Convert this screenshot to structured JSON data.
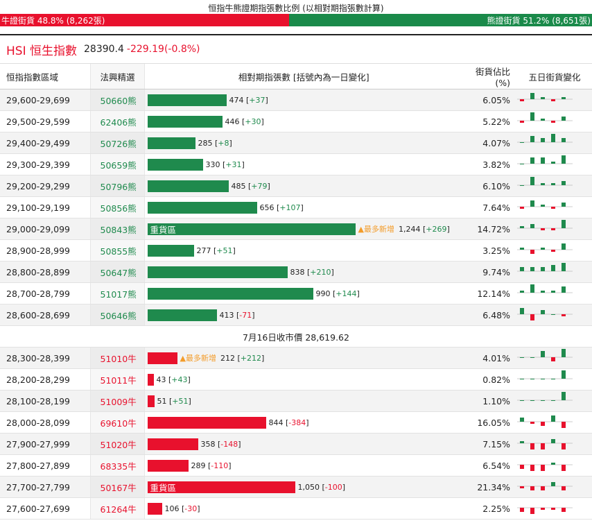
{
  "top": {
    "title": "恒指牛熊證期指張數比例 (以相對期指張數計算)",
    "bull_label": "牛證街貨 48.8% (8,262張)",
    "bear_label": "熊證街貨 51.2% (8,651張)",
    "bull_share": 48.8,
    "bear_share": 51.2,
    "bull_color": "#e8112d",
    "bear_color": "#1a8a4a"
  },
  "hsi": {
    "name": "HSI 恒生指數",
    "price": "28390.4",
    "change": "-229.19(-0.8%)"
  },
  "table": {
    "headers": {
      "range": "恒指指數區域",
      "code": "法興精選",
      "bar": "相對期指張數 [括號內為一日變化]",
      "pct": "街貨佔比(%)",
      "spark": "五日街貨變化"
    },
    "closing_label": "7月16日收市價 28,619.62",
    "heavy_label": "重貨區",
    "new_label": "▲最多新增",
    "bear_rows": [
      {
        "range": "29,600-29,699",
        "code": "50660熊",
        "contracts": 474,
        "count": "474",
        "change": "+37",
        "pct": "6.05%",
        "spark": [
          -1,
          3,
          1,
          -1,
          1
        ]
      },
      {
        "range": "29,500-29,599",
        "code": "62406熊",
        "contracts": 446,
        "count": "446",
        "change": "+30",
        "pct": "5.22%",
        "spark": [
          -1,
          4,
          1,
          -1,
          2
        ]
      },
      {
        "range": "29,400-29,499",
        "code": "50726熊",
        "contracts": 285,
        "count": "285",
        "change": "+8",
        "pct": "4.07%",
        "spark": [
          0,
          3,
          2,
          4,
          2
        ]
      },
      {
        "range": "29,300-29,399",
        "code": "50659熊",
        "contracts": 330,
        "count": "330",
        "change": "+31",
        "pct": "3.82%",
        "spark": [
          0,
          3,
          3,
          1,
          4
        ]
      },
      {
        "range": "29,200-29,299",
        "code": "50796熊",
        "contracts": 485,
        "count": "485",
        "change": "+79",
        "pct": "6.10%",
        "spark": [
          0,
          4,
          1,
          1,
          2
        ]
      },
      {
        "range": "29,100-29,199",
        "code": "50856熊",
        "contracts": 656,
        "count": "656",
        "change": "+107",
        "pct": "7.64%",
        "spark": [
          -1,
          3,
          1,
          -1,
          2
        ]
      },
      {
        "range": "29,000-29,099",
        "code": "50843熊",
        "contracts": 1244,
        "count": "1,244",
        "change": "+269",
        "pct": "14.72%",
        "spark": [
          1,
          2,
          -1,
          -1,
          4
        ],
        "heavy": true,
        "new": true
      },
      {
        "range": "28,900-28,999",
        "code": "50855熊",
        "contracts": 277,
        "count": "277",
        "change": "+51",
        "pct": "3.25%",
        "spark": [
          1,
          -2,
          1,
          -1,
          3
        ]
      },
      {
        "range": "28,800-28,899",
        "code": "50647熊",
        "contracts": 838,
        "count": "838",
        "change": "+210",
        "pct": "9.74%",
        "spark": [
          2,
          2,
          2,
          3,
          4
        ]
      },
      {
        "range": "28,700-28,799",
        "code": "51017熊",
        "contracts": 990,
        "count": "990",
        "change": "+144",
        "pct": "12.14%",
        "spark": [
          1,
          4,
          1,
          1,
          3
        ]
      },
      {
        "range": "28,600-28,699",
        "code": "50646熊",
        "contracts": 413,
        "count": "413",
        "change": "-71",
        "pct": "6.48%",
        "spark": [
          3,
          -3,
          2,
          0,
          -1
        ]
      }
    ],
    "bull_rows": [
      {
        "range": "28,300-28,399",
        "code": "51010牛",
        "contracts": 212,
        "count": "212",
        "change": "+212",
        "pct": "4.01%",
        "spark": [
          0,
          0,
          3,
          -2,
          4
        ],
        "new": true
      },
      {
        "range": "28,200-28,299",
        "code": "51011牛",
        "contracts": 43,
        "count": "43",
        "change": "+43",
        "pct": "0.82%",
        "spark": [
          0,
          0,
          0,
          0,
          4
        ]
      },
      {
        "range": "28,100-28,199",
        "code": "51009牛",
        "contracts": 51,
        "count": "51",
        "change": "+51",
        "pct": "1.10%",
        "spark": [
          0,
          0,
          0,
          0,
          4
        ]
      },
      {
        "range": "28,000-28,099",
        "code": "69610牛",
        "contracts": 844,
        "count": "844",
        "change": "-384",
        "pct": "16.05%",
        "spark": [
          2,
          -1,
          -2,
          3,
          -3
        ]
      },
      {
        "range": "27,900-27,999",
        "code": "51020牛",
        "contracts": 358,
        "count": "358",
        "change": "-148",
        "pct": "7.15%",
        "spark": [
          1,
          -3,
          -3,
          2,
          -3
        ]
      },
      {
        "range": "27,800-27,899",
        "code": "68335牛",
        "contracts": 289,
        "count": "289",
        "change": "-110",
        "pct": "6.54%",
        "spark": [
          -2,
          -3,
          -3,
          1,
          -3
        ]
      },
      {
        "range": "27,700-27,799",
        "code": "50167牛",
        "contracts": 1050,
        "count": "1,050",
        "change": "-100",
        "pct": "21.34%",
        "spark": [
          -1,
          -2,
          -2,
          2,
          -2
        ],
        "heavy": true
      },
      {
        "range": "27,600-27,699",
        "code": "61264牛",
        "contracts": 106,
        "count": "106",
        "change": "-30",
        "pct": "2.25%",
        "spark": [
          -2,
          -3,
          -1,
          -1,
          -2
        ]
      }
    ]
  }
}
